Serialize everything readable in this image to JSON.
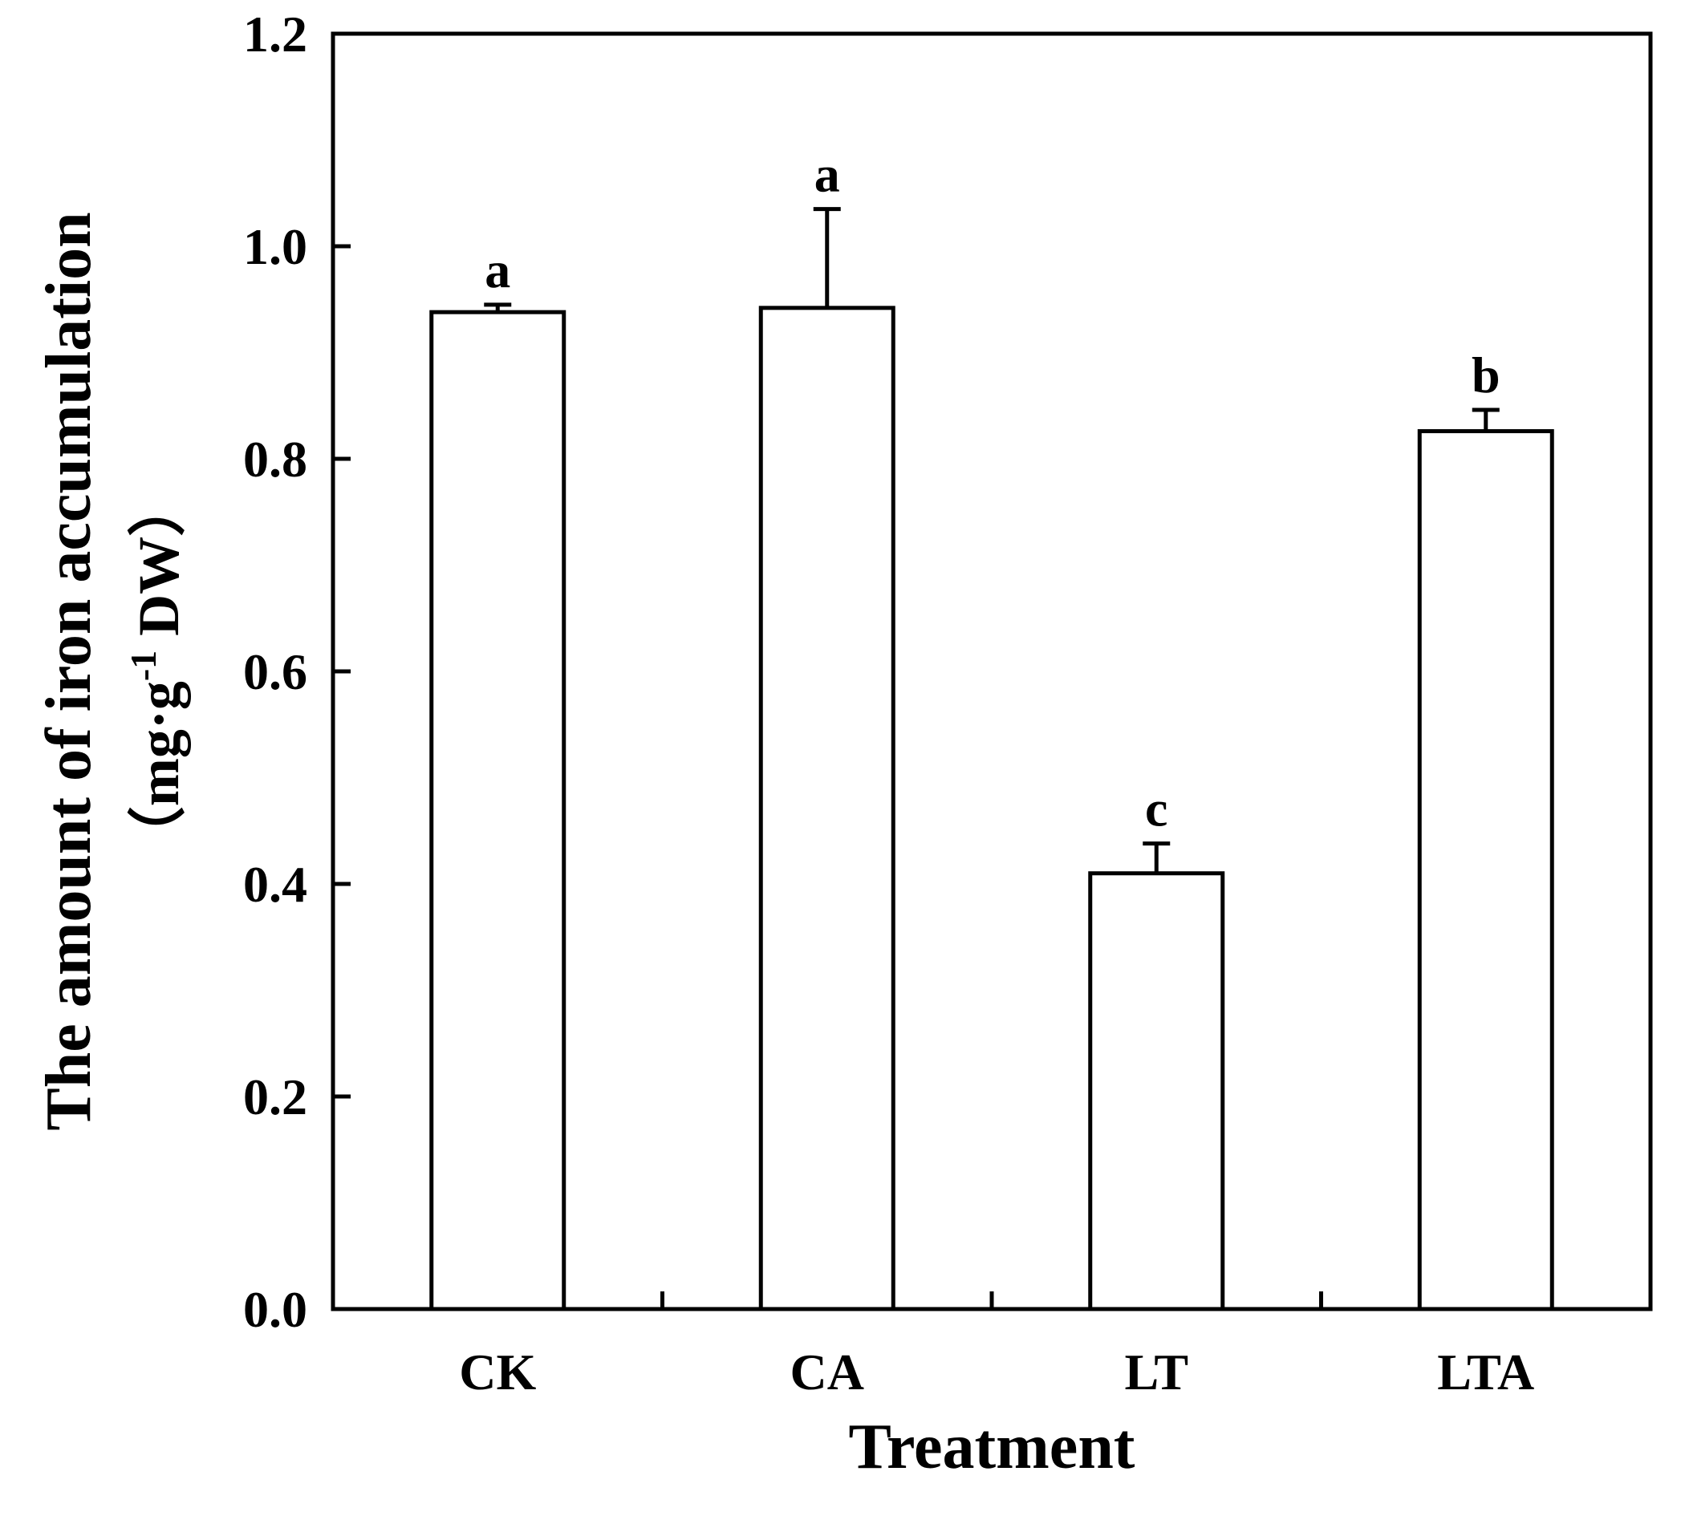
{
  "chart_data": {
    "type": "bar",
    "categories": [
      "CK",
      "CA",
      "LT",
      "LTA"
    ],
    "values": [
      0.938,
      0.942,
      0.41,
      0.826
    ],
    "errors": [
      0.007,
      0.093,
      0.028,
      0.02
    ],
    "significance": [
      "a",
      "a",
      "c",
      "b"
    ],
    "xlabel": "Treatment",
    "ylabel_line1": "The amount of iron accumulation",
    "ylabel_line2_prefix": "（mg·g",
    "ylabel_line2_sup": "-1",
    "ylabel_line2_suffix": " DW）",
    "ylim": [
      0,
      1.2
    ],
    "yticks": [
      0.0,
      0.2,
      0.4,
      0.6,
      0.8,
      1.0,
      1.2
    ],
    "ytick_labels": [
      "0.0",
      "0.2",
      "0.4",
      "0.6",
      "0.8",
      "1.0",
      "1.2"
    ],
    "grid": false,
    "colors": {
      "bar_fill": "#ffffff",
      "bar_stroke": "#000000",
      "axis": "#000000"
    }
  }
}
